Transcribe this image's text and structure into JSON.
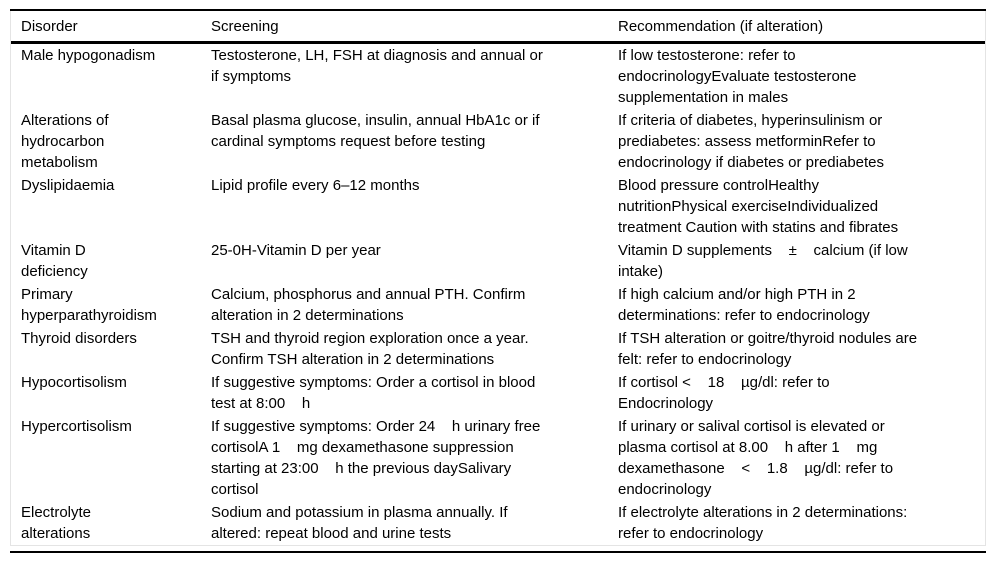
{
  "table": {
    "columns": [
      "Disorder",
      "Screening",
      "Recommendation (if alteration)"
    ],
    "rows": [
      {
        "disorder": "Male hypogonadism",
        "screening": "Testosterone, LH, FSH at diagnosis and annual or\nif symptoms",
        "recommendation": "If low testosterone: refer to\nendocrinologyEvaluate testosterone\nsupplementation in males"
      },
      {
        "disorder": "Alterations of\nhydrocarbon\nmetabolism",
        "screening": "Basal plasma glucose, insulin, annual HbA1c or if\ncardinal symptoms request before testing",
        "recommendation": "If criteria of diabetes, hyperinsulinism or\nprediabetes: assess metforminRefer to\nendocrinology if diabetes or prediabetes"
      },
      {
        "disorder": "Dyslipidaemia",
        "screening": "Lipid profile every 6–12 months",
        "recommendation": "Blood pressure controlHealthy\nnutritionPhysical exerciseIndividualized\ntreatment Caution with statins and fibrates"
      },
      {
        "disorder": "Vitamin D\ndeficiency",
        "screening": "25-0H-Vitamin D per year",
        "recommendation": "Vitamin D supplements    ±    calcium (if low\nintake)"
      },
      {
        "disorder": "Primary\nhyperparathyroidism",
        "screening": "Calcium, phosphorus and annual PTH. Confirm\nalteration in 2 determinations",
        "recommendation": "If high calcium and/or high PTH in 2\ndeterminations: refer to endocrinology"
      },
      {
        "disorder": "Thyroid disorders",
        "screening": "TSH and thyroid region exploration once a year.\nConfirm TSH alteration in 2 determinations",
        "recommendation": "If TSH alteration or goitre/thyroid nodules are\nfelt: refer to endocrinology"
      },
      {
        "disorder": "Hypocortisolism",
        "screening": "If suggestive symptoms: Order a cortisol in blood\ntest at 8:00    h",
        "recommendation": "If cortisol <    18    µg/dl: refer to\nEndocrinology"
      },
      {
        "disorder": "Hypercortisolism",
        "screening": "If suggestive symptoms: Order 24    h urinary free\ncortisolA 1    mg dexamethasone suppression\nstarting at 23:00    h the previous daySalivary\ncortisol",
        "recommendation": "If urinary or salival cortisol is elevated or\nplasma cortisol at 8.00    h after 1    mg\ndexamethasone    <    1.8    µg/dl: refer to\nendocrinology"
      },
      {
        "disorder": "Electrolyte\nalterations",
        "screening": "Sodium and potassium in plasma annually. If\naltered: repeat blood and urine tests",
        "recommendation": "If electrolyte alterations in 2 determinations:\nrefer to endocrinology"
      }
    ]
  }
}
